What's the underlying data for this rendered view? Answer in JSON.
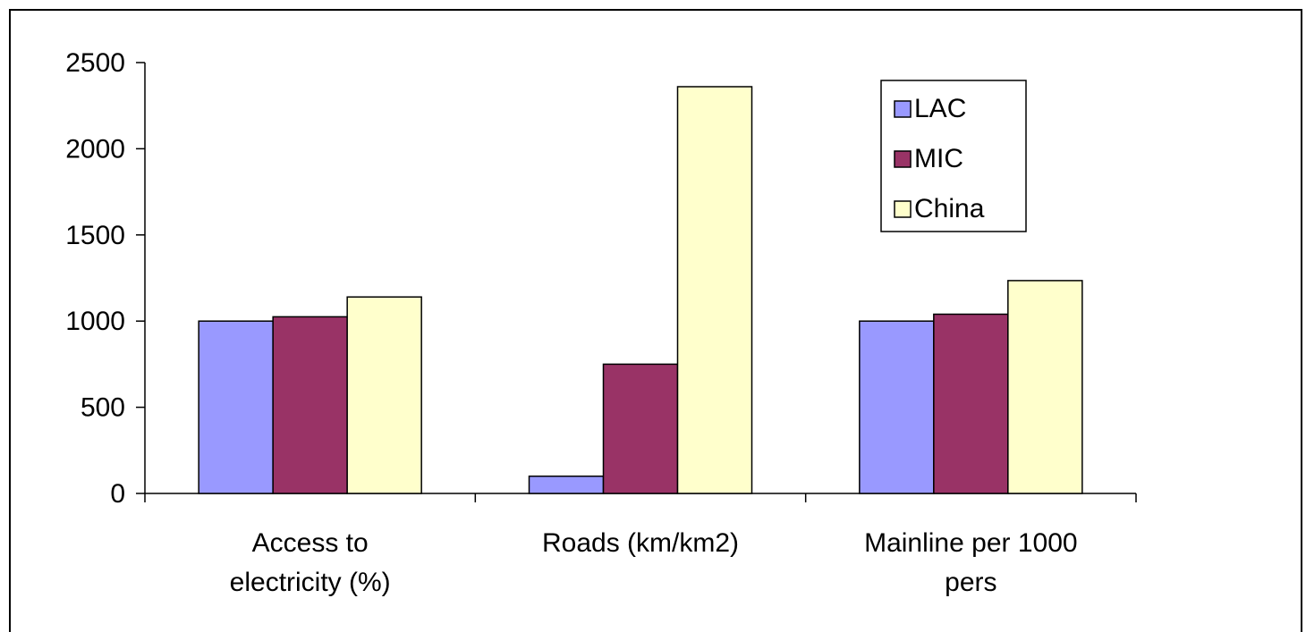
{
  "chart_data": {
    "type": "bar",
    "categories": [
      [
        "Access to",
        "electricity (%)"
      ],
      [
        "Roads (km/km2)"
      ],
      [
        "Mainline per 1000",
        "pers"
      ]
    ],
    "series": [
      {
        "name": "LAC",
        "color": "#9999FF",
        "values": [
          1000,
          100,
          1000
        ]
      },
      {
        "name": "MIC",
        "color": "#993366",
        "values": [
          1025,
          750,
          1040
        ]
      },
      {
        "name": "China",
        "color": "#FFFFCC",
        "values": [
          1140,
          2360,
          1235
        ]
      }
    ],
    "yticks": [
      "0",
      "500",
      "1000",
      "1500",
      "2000",
      "2500"
    ],
    "ylim": [
      0,
      2500
    ],
    "grid": false,
    "legend_position": "top-right"
  }
}
